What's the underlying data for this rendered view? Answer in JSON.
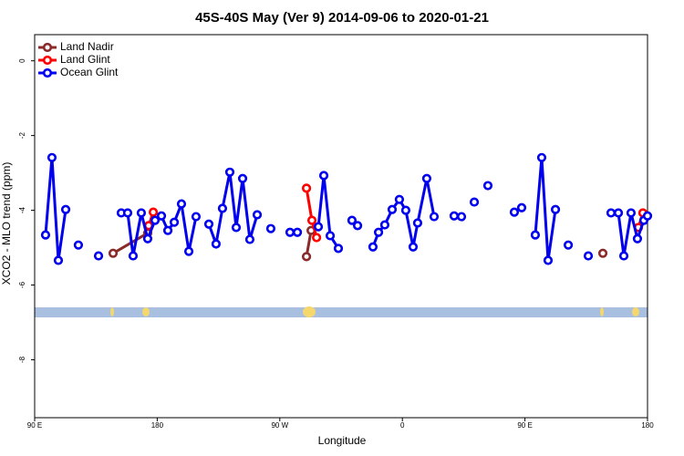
{
  "chart_data": {
    "type": "line",
    "title": "45S-40S May (Ver 9)   2014-09-06 to 2020-01-21",
    "x_label": "Longitude",
    "y_label": "XCO2 - MLO trend (ppm)",
    "xlim": [
      90,
      540
    ],
    "ylim": [
      -9.55,
      0.7
    ],
    "xticks": [
      {
        "value": 90,
        "label": "90 E"
      },
      {
        "value": 180,
        "label": "180"
      },
      {
        "value": 270,
        "label": "90 W"
      },
      {
        "value": 360,
        "label": "0"
      },
      {
        "value": 450,
        "label": "90 E"
      },
      {
        "value": 540,
        "label": "180"
      }
    ],
    "yticks": [
      0,
      -2,
      -4,
      -6,
      -8
    ],
    "legend": "top-left",
    "series": [
      {
        "name": "Land Nadir",
        "color": "#8b2a2a",
        "x": [
          147.6,
          173.0,
          null,
          289.6,
          293.0,
          null,
          507.2
        ],
        "values": [
          -5.15,
          -4.61,
          null,
          -5.24,
          -4.54,
          null,
          -5.15
        ]
      },
      {
        "name": "Land Glint",
        "color": "#ff0000",
        "x": [
          173.7,
          177.1,
          null,
          289.6,
          293.6,
          297.0,
          null,
          533.3,
          536.6
        ],
        "values": [
          -4.41,
          -4.05,
          null,
          -3.41,
          -4.27,
          -4.73,
          null,
          -4.46,
          -4.07
        ]
      },
      {
        "name": "Ocean Glint",
        "color": "#0000ee",
        "x": [
          98.0,
          102.7,
          107.4,
          112.8,
          null,
          122.1,
          null,
          136.9,
          null,
          153.6,
          158.3,
          162.3,
          168.3,
          173.0,
          178.4,
          183.1,
          187.8,
          192.5,
          197.8,
          203.2,
          208.5,
          null,
          217.9,
          223.2,
          227.9,
          233.3,
          238.0,
          242.7,
          248.0,
          253.4,
          null,
          263.4,
          null,
          277.5,
          282.9,
          null,
          298.3,
          302.3,
          307.0,
          313.0,
          null,
          323.0,
          327.1,
          null,
          338.4,
          342.5,
          347.1,
          352.5,
          357.8,
          362.5,
          367.9,
          371.2,
          377.9,
          383.3,
          null,
          398.0,
          403.4,
          null,
          412.8,
          null,
          422.8,
          null,
          442.2,
          447.6,
          null,
          457.6,
          462.3,
          467.0,
          472.4,
          null,
          481.8,
          null,
          496.5,
          null,
          513.2,
          518.6,
          522.6,
          527.9,
          532.6,
          537.3,
          540
        ],
        "values": [
          -4.66,
          -2.59,
          -5.34,
          -3.98,
          null,
          -4.93,
          null,
          -5.22,
          null,
          -4.07,
          -4.07,
          -5.22,
          -4.07,
          -4.76,
          -4.27,
          -4.15,
          -4.54,
          -4.32,
          -3.83,
          -5.1,
          -4.17,
          null,
          -4.37,
          -4.9,
          -3.95,
          -2.98,
          -4.46,
          -3.15,
          -4.78,
          -4.12,
          null,
          -4.49,
          null,
          -4.59,
          -4.59,
          null,
          -4.44,
          -3.07,
          -4.68,
          -5.02,
          null,
          -4.27,
          -4.41,
          null,
          -4.98,
          -4.59,
          -4.39,
          -3.98,
          -3.71,
          -4.0,
          -4.98,
          -4.34,
          -3.15,
          -4.17,
          null,
          -4.15,
          -4.17,
          null,
          -3.78,
          null,
          -3.34,
          null,
          -4.05,
          -3.93,
          null,
          -4.66,
          -2.59,
          -5.34,
          -3.98,
          null,
          -4.93,
          null,
          -5.22,
          null,
          -4.07,
          -4.07,
          -5.22,
          -4.07,
          -4.76,
          -4.27,
          -4.15
        ]
      }
    ]
  }
}
